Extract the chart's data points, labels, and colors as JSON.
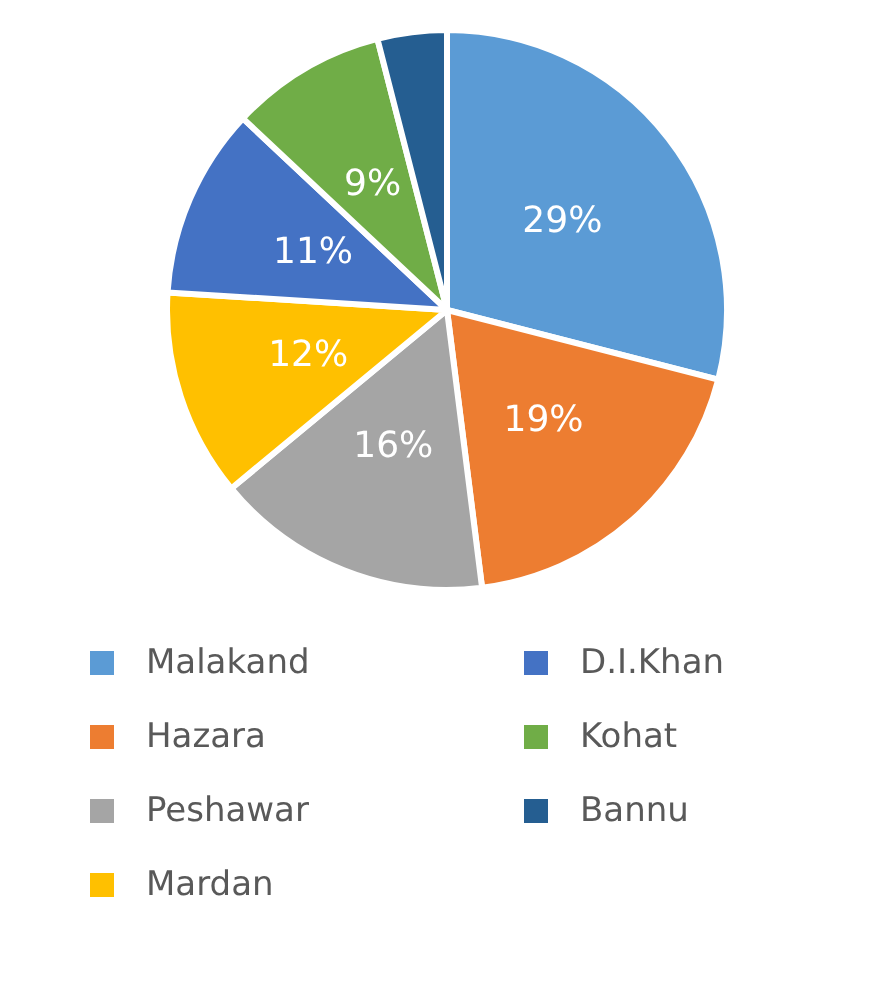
{
  "chart_data": {
    "type": "pie",
    "categories": [
      "Malakand",
      "Hazara",
      "Peshawar",
      "Mardan",
      "D.I.Khan",
      "Kohat",
      "Bannu"
    ],
    "values": [
      29,
      19,
      16,
      12,
      11,
      9,
      4
    ],
    "colors": [
      "#5b9bd5",
      "#ed7d31",
      "#a5a5a5",
      "#ffc000",
      "#4472c4",
      "#70ad47",
      "#255e91"
    ],
    "value_labels": [
      "29%",
      "19%",
      "16%",
      "12%",
      "11%",
      "9%",
      null
    ],
    "legend": "bottom"
  }
}
